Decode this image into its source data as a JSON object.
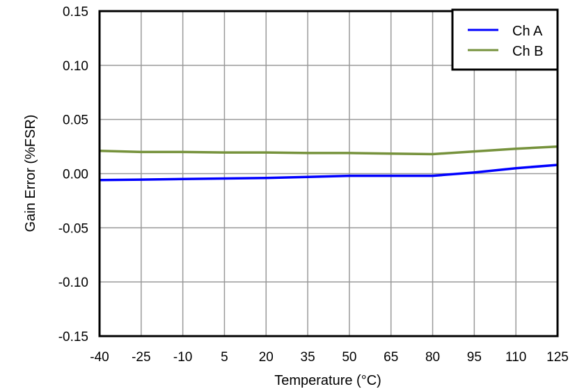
{
  "chart_data": {
    "type": "line",
    "title": "",
    "xlabel": "Temperature (°C)",
    "ylabel": "Gain Error (%FSR)",
    "xlim": [
      -40,
      125
    ],
    "ylim": [
      -0.15,
      0.15
    ],
    "x_ticks": [
      "-40",
      "-25",
      "-10",
      "5",
      "20",
      "35",
      "50",
      "65",
      "80",
      "95",
      "110",
      "125"
    ],
    "y_ticks": [
      "0.15",
      "0.10",
      "0.05",
      "0.00",
      "-0.05",
      "-0.10",
      "-0.15"
    ],
    "grid": true,
    "legend_position": "upper right",
    "x": [
      -40,
      -25,
      -10,
      5,
      20,
      35,
      50,
      65,
      80,
      95,
      110,
      125
    ],
    "series": [
      {
        "name": "Ch A",
        "color": "#0000FF",
        "values": [
          -0.006,
          -0.0055,
          -0.005,
          -0.0045,
          -0.004,
          -0.003,
          -0.002,
          -0.002,
          -0.002,
          0.001,
          0.005,
          0.008
        ]
      },
      {
        "name": "Ch B",
        "color": "#76923C",
        "values": [
          0.021,
          0.02,
          0.02,
          0.0195,
          0.0195,
          0.019,
          0.019,
          0.0185,
          0.018,
          0.0205,
          0.023,
          0.025
        ]
      }
    ]
  }
}
